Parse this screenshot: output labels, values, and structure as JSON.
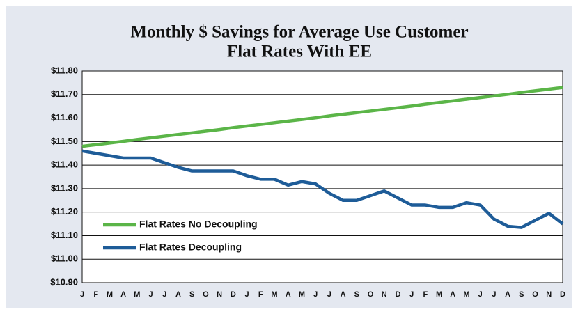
{
  "chart_data": {
    "type": "line",
    "title": "Monthly $ Savings for Average Use Customer",
    "subtitle": "Flat Rates With EE",
    "categories": [
      "J",
      "F",
      "M",
      "A",
      "M",
      "J",
      "J",
      "A",
      "S",
      "O",
      "N",
      "D",
      "J",
      "F",
      "M",
      "A",
      "M",
      "J",
      "J",
      "A",
      "S",
      "O",
      "N",
      "D",
      "J",
      "F",
      "M",
      "A",
      "M",
      "J",
      "J",
      "A",
      "S",
      "O",
      "N",
      "D"
    ],
    "series": [
      {
        "name": "Flat Rates No Decoupling",
        "color": "#5bb548",
        "values": [
          11.48,
          11.487,
          11.494,
          11.501,
          11.509,
          11.516,
          11.523,
          11.53,
          11.537,
          11.544,
          11.551,
          11.559,
          11.566,
          11.573,
          11.58,
          11.587,
          11.594,
          11.601,
          11.609,
          11.616,
          11.623,
          11.63,
          11.637,
          11.644,
          11.651,
          11.659,
          11.666,
          11.673,
          11.68,
          11.687,
          11.694,
          11.701,
          11.709,
          11.716,
          11.723,
          11.73
        ]
      },
      {
        "name": "Flat Rates Decoupling",
        "color": "#1e5c98",
        "values": [
          11.46,
          11.45,
          11.44,
          11.43,
          11.43,
          11.43,
          11.41,
          11.39,
          11.375,
          11.375,
          11.375,
          11.375,
          11.355,
          11.34,
          11.34,
          11.315,
          11.33,
          11.32,
          11.28,
          11.25,
          11.25,
          11.27,
          11.29,
          11.26,
          11.23,
          11.23,
          11.22,
          11.22,
          11.24,
          11.23,
          11.17,
          11.14,
          11.135,
          11.165,
          11.195,
          11.15
        ]
      }
    ],
    "ylim": [
      10.9,
      11.8
    ],
    "yticks": [
      {
        "value": 10.9,
        "label": "$10.90"
      },
      {
        "value": 11.0,
        "label": "$11.00"
      },
      {
        "value": 11.1,
        "label": "$11.10"
      },
      {
        "value": 11.2,
        "label": "$11.20"
      },
      {
        "value": 11.3,
        "label": "$11.30"
      },
      {
        "value": 11.4,
        "label": "$11.40"
      },
      {
        "value": 11.5,
        "label": "$11.50"
      },
      {
        "value": 11.6,
        "label": "$11.60"
      },
      {
        "value": 11.7,
        "label": "$11.70"
      },
      {
        "value": 11.8,
        "label": "$11.80"
      }
    ],
    "grid": true
  }
}
